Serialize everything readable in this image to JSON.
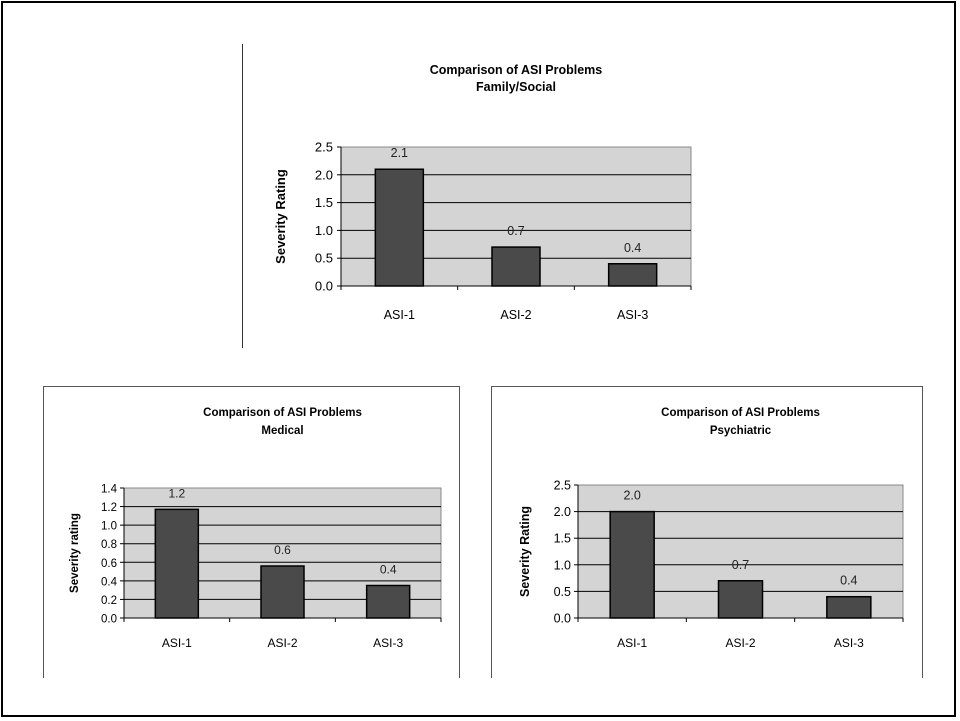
{
  "chart_data": [
    {
      "id": "family",
      "type": "bar",
      "title": "Comparison of ASI Problems",
      "subtitle": "Family/Social",
      "ylabel": "Severity Rating",
      "xlabel": "",
      "categories": [
        "ASI-1",
        "ASI-2",
        "ASI-3"
      ],
      "values": [
        2.1,
        0.7,
        0.4
      ],
      "value_labels": [
        "2.1",
        "0.7",
        "0.4"
      ],
      "ylim": [
        0,
        2.5
      ],
      "yticks": [
        "0.0",
        "0.5",
        "1.0",
        "1.5",
        "2.0",
        "2.5"
      ],
      "grid": true,
      "legend": "none",
      "plot_bg": "#d4d4d4",
      "bar_color": "#4a4a4a"
    },
    {
      "id": "medical",
      "type": "bar",
      "title": "Comparison of ASI Problems",
      "subtitle": "Medical",
      "ylabel": "Severity rating",
      "xlabel": "",
      "categories": [
        "ASI-1",
        "ASI-2",
        "ASI-3"
      ],
      "values": [
        1.17,
        0.56,
        0.35
      ],
      "value_labels": [
        "1.2",
        "0.6",
        "0.4"
      ],
      "ylim": [
        0,
        1.4
      ],
      "yticks": [
        "0.0",
        "0.2",
        "0.4",
        "0.6",
        "0.8",
        "1.0",
        "1.2",
        "1.4"
      ],
      "grid": true,
      "legend": "none",
      "plot_bg": "#d4d4d4",
      "bar_color": "#4a4a4a"
    },
    {
      "id": "psychiatric",
      "type": "bar",
      "title": "Comparison of ASI Problems",
      "subtitle": "Psychiatric",
      "ylabel": "Severity Rating",
      "xlabel": "",
      "categories": [
        "ASI-1",
        "ASI-2",
        "ASI-3"
      ],
      "values": [
        2.0,
        0.7,
        0.4
      ],
      "value_labels": [
        "2.0",
        "0.7",
        "0.4"
      ],
      "ylim": [
        0,
        2.5
      ],
      "yticks": [
        "0.0",
        "0.5",
        "1.0",
        "1.5",
        "2.0",
        "2.5"
      ],
      "grid": true,
      "legend": "none",
      "plot_bg": "#d4d4d4",
      "bar_color": "#4a4a4a"
    }
  ]
}
